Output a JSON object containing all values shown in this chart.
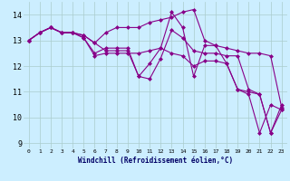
{
  "xlabel": "Windchill (Refroidissement éolien,°C)",
  "bg_color": "#cceeff",
  "grid_color": "#aacccc",
  "line_color": "#880088",
  "marker": "D",
  "markersize": 2.0,
  "linewidth": 0.8,
  "xlim": [
    -0.5,
    23.5
  ],
  "ylim": [
    8.8,
    14.5
  ],
  "yticks": [
    9,
    10,
    11,
    12,
    13,
    14
  ],
  "xticks": [
    0,
    1,
    2,
    3,
    4,
    5,
    6,
    7,
    8,
    9,
    10,
    11,
    12,
    13,
    14,
    15,
    16,
    17,
    18,
    19,
    20,
    21,
    22,
    23
  ],
  "series": [
    [
      13.0,
      13.3,
      13.5,
      13.3,
      13.3,
      13.1,
      12.5,
      12.7,
      12.7,
      12.7,
      11.6,
      12.1,
      12.7,
      14.1,
      13.5,
      11.6,
      12.8,
      12.8,
      12.1,
      11.1,
      11.0,
      10.9,
      9.4,
      10.3
    ],
    [
      13.0,
      13.3,
      13.5,
      13.3,
      13.3,
      13.2,
      12.9,
      13.3,
      13.5,
      13.5,
      13.5,
      13.7,
      13.8,
      13.9,
      14.1,
      14.2,
      13.0,
      12.8,
      12.7,
      12.6,
      12.5,
      12.5,
      12.4,
      10.4
    ],
    [
      13.0,
      13.3,
      13.5,
      13.3,
      13.3,
      13.2,
      12.9,
      12.6,
      12.6,
      12.6,
      11.6,
      11.5,
      12.3,
      13.4,
      13.1,
      12.6,
      12.5,
      12.5,
      12.4,
      12.4,
      11.1,
      10.9,
      9.4,
      10.5
    ],
    [
      13.0,
      13.3,
      13.5,
      13.3,
      13.3,
      13.1,
      12.4,
      12.5,
      12.5,
      12.5,
      12.5,
      12.6,
      12.7,
      12.5,
      12.4,
      12.0,
      12.2,
      12.2,
      12.1,
      11.1,
      10.9,
      9.4,
      10.5,
      10.3
    ]
  ]
}
